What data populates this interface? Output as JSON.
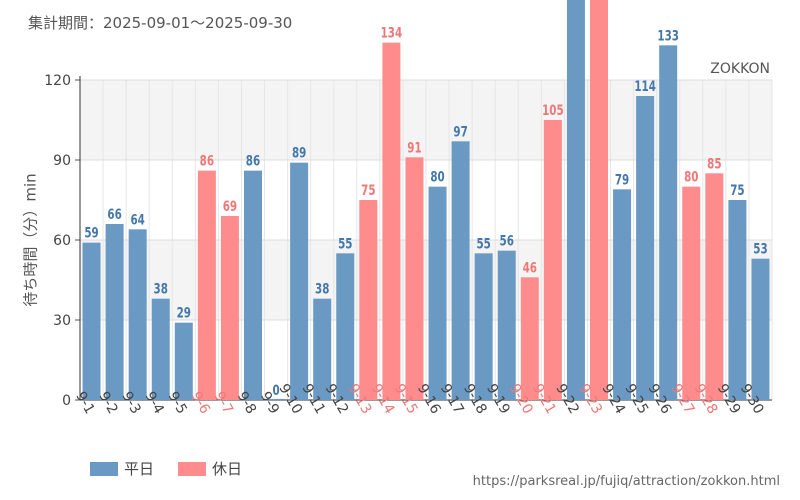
{
  "header": {
    "period_label": "集計期間：2025-09-01～2025-09-30",
    "attraction": "ZOKKON"
  },
  "footer": {
    "source_url": "https://parksreal.jp/fujiq/attraction/zokkon.html"
  },
  "colors": {
    "weekday": "#6a99c4",
    "holiday": "#ff8c8c",
    "weekday_label": "#4477aa",
    "holiday_label": "#ee7777"
  },
  "chart_data": {
    "type": "bar",
    "title": "",
    "xlabel": "",
    "ylabel": "待ち時間（分）min",
    "ylim": [
      0,
      120
    ],
    "yticks": [
      0,
      30,
      60,
      90,
      120
    ],
    "grid": true,
    "legend_position": "bottom-left",
    "categories": [
      "9-1",
      "9-2",
      "9-3",
      "9-4",
      "9-5",
      "9-6",
      "9-7",
      "9-8",
      "9-9",
      "9-10",
      "9-11",
      "9-12",
      "9-13",
      "9-14",
      "9-15",
      "9-16",
      "9-17",
      "9-18",
      "9-19",
      "9-20",
      "9-21",
      "9-22",
      "9-23",
      "9-24",
      "9-25",
      "9-26",
      "9-27",
      "9-28",
      "9-29",
      "9-30"
    ],
    "values": [
      59,
      66,
      64,
      38,
      29,
      86,
      69,
      86,
      0,
      89,
      38,
      55,
      75,
      134,
      91,
      80,
      97,
      55,
      56,
      46,
      105,
      null,
      null,
      79,
      114,
      133,
      80,
      85,
      75,
      53
    ],
    "day_type": [
      "weekday",
      "weekday",
      "weekday",
      "weekday",
      "weekday",
      "holiday",
      "holiday",
      "weekday",
      "weekday",
      "weekday",
      "weekday",
      "weekday",
      "holiday",
      "holiday",
      "holiday",
      "weekday",
      "weekday",
      "weekday",
      "weekday",
      "holiday",
      "holiday",
      "weekday",
      "holiday",
      "weekday",
      "weekday",
      "weekday",
      "holiday",
      "holiday",
      "weekday",
      "weekday"
    ],
    "series_legend": [
      {
        "key": "weekday",
        "label": "平日"
      },
      {
        "key": "holiday",
        "label": "休日"
      }
    ]
  }
}
